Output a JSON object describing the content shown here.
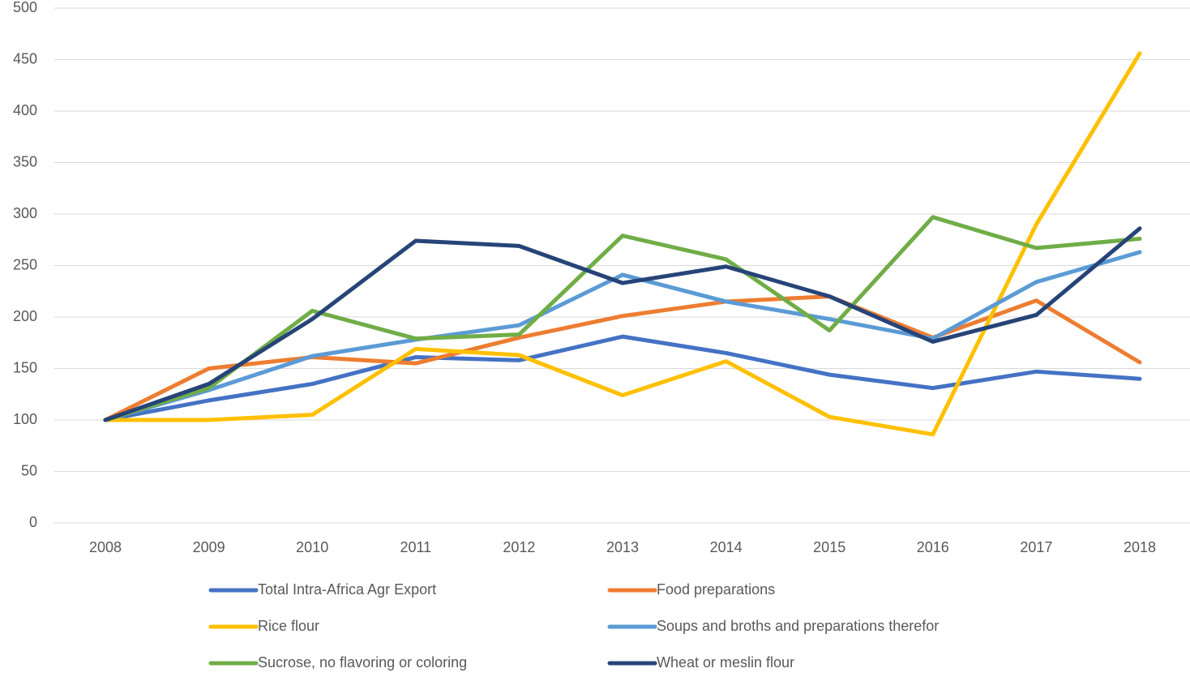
{
  "chart_data": {
    "type": "line",
    "categories": [
      "2008",
      "2009",
      "2010",
      "2011",
      "2012",
      "2013",
      "2014",
      "2015",
      "2016",
      "2017",
      "2018"
    ],
    "series": [
      {
        "name": "Total Intra-Africa Agr Export",
        "color": "#4472c4",
        "values": [
          100,
          119,
          135,
          161,
          158,
          181,
          165,
          144,
          131,
          147,
          140
        ]
      },
      {
        "name": "Food preparations",
        "color": "#ed7d31",
        "values": [
          100,
          150,
          161,
          155,
          180,
          201,
          215,
          220,
          180,
          216,
          156
        ]
      },
      {
        "name": "Rice flour",
        "color": "#ffc000",
        "values": [
          100,
          100,
          105,
          169,
          163,
          124,
          157,
          103,
          86,
          290,
          456
        ]
      },
      {
        "name": "Soups and broths and preparations therefor",
        "color": "#5b9bd5",
        "values": [
          100,
          129,
          162,
          178,
          192,
          241,
          215,
          198,
          179,
          234,
          263
        ]
      },
      {
        "name": "Sucrose, no flavoring or coloring",
        "color": "#70ad47",
        "values": [
          100,
          131,
          206,
          179,
          183,
          279,
          256,
          187,
          297,
          267,
          276
        ]
      },
      {
        "name": "Wheat or meslin flour",
        "color": "#264478",
        "values": [
          100,
          135,
          198,
          274,
          269,
          233,
          249,
          220,
          176,
          202,
          286
        ]
      }
    ],
    "ylim": [
      0,
      500
    ],
    "yticks": [
      0,
      50,
      100,
      150,
      200,
      250,
      300,
      350,
      400,
      450,
      500
    ],
    "grid": true,
    "legend": "bottom"
  }
}
